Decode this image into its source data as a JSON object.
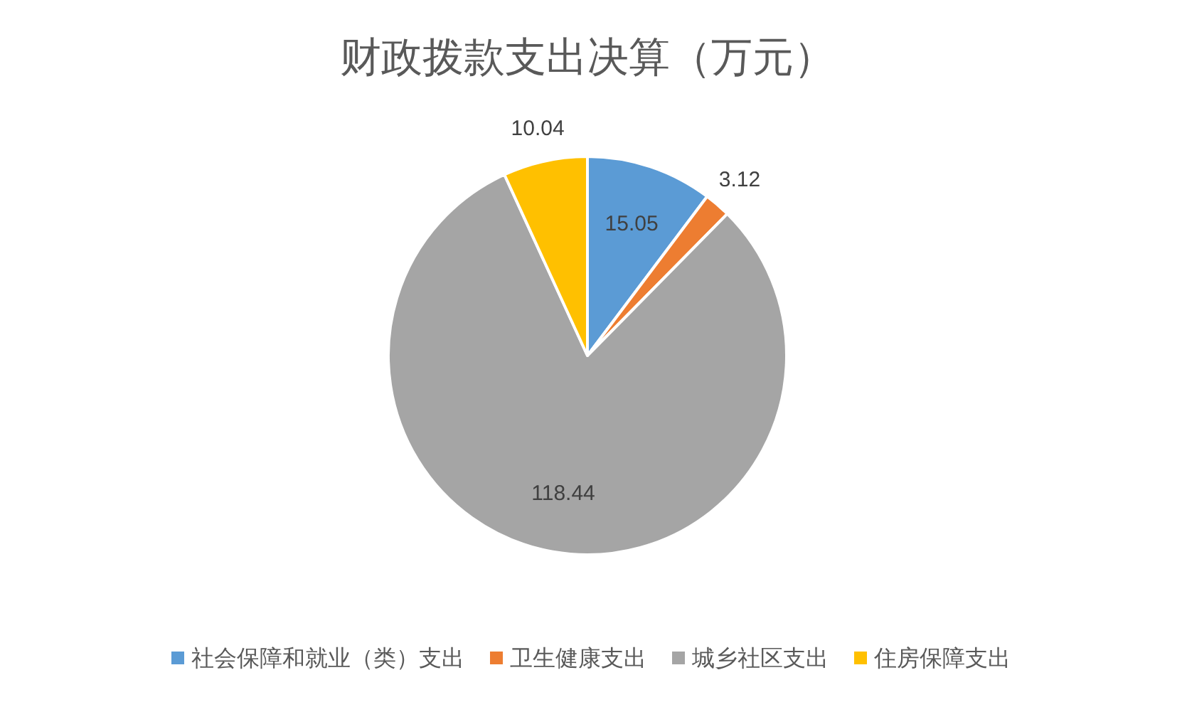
{
  "chart_data": {
    "type": "pie",
    "title": "财政拨款支出决算（万元）",
    "categories": [
      "社会保障和就业（类）支出",
      "卫生健康支出",
      "城乡社区支出",
      "住房保障支出"
    ],
    "values": [
      15.05,
      3.12,
      118.44,
      10.04
    ],
    "colors": [
      "#5b9bd5",
      "#ed7d31",
      "#a5a5a5",
      "#ffc000"
    ],
    "data_labels": true,
    "legend": "bottom"
  }
}
